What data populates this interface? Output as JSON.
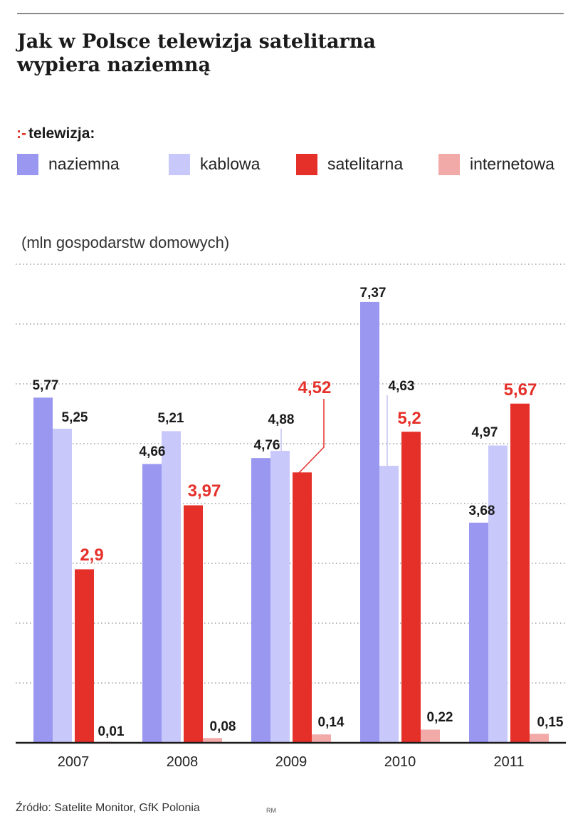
{
  "title_line1": "Jak w Polsce telewizja satelitarna",
  "title_line2": "wypiera naziemną",
  "legend": {
    "heading_mark": ":-",
    "heading": "telewizja:",
    "items": [
      {
        "label": "naziemna",
        "color": "#9a97f0"
      },
      {
        "label": "kablowa",
        "color": "#c9c8fb"
      },
      {
        "label": "satelitarna",
        "color": "#e5302a"
      },
      {
        "label": "internetowa",
        "color": "#f2aaa9"
      }
    ]
  },
  "unit_label": "(mln gospodarstw domowych)",
  "source": "Źródło: Satelite Monitor, GfK Polonia",
  "author_initials": "RM",
  "chart_data": {
    "type": "bar",
    "categories": [
      "2007",
      "2008",
      "2009",
      "2010",
      "2011"
    ],
    "series": [
      {
        "name": "naziemna",
        "color": "#9a97f0",
        "label_color": "#1a1a1a",
        "values": [
          5.77,
          4.66,
          4.76,
          7.37,
          3.68
        ],
        "labels": [
          "5,77",
          "4,66",
          "4,76",
          "7,37",
          "3,68"
        ]
      },
      {
        "name": "kablowa",
        "color": "#c9c8fb",
        "label_color": "#1a1a1a",
        "values": [
          5.25,
          5.21,
          4.88,
          4.63,
          4.97
        ],
        "labels": [
          "5,25",
          "5,21",
          "4,88",
          "4,63",
          "4,97"
        ]
      },
      {
        "name": "satelitarna",
        "color": "#e5302a",
        "label_color": "#e5302a",
        "values": [
          2.9,
          3.97,
          4.52,
          5.2,
          5.67
        ],
        "labels": [
          "2,9",
          "3,97",
          "4,52",
          "5,2",
          "5,67"
        ]
      },
      {
        "name": "internetowa",
        "color": "#f2aaa9",
        "label_color": "#1a1a1a",
        "values": [
          0.01,
          0.08,
          0.14,
          0.22,
          0.15
        ],
        "labels": [
          "0,01",
          "0,08",
          "0,14",
          "0,22",
          "0,15"
        ]
      }
    ],
    "ylabel": "(mln gospodarstw domowych)",
    "ylim": [
      0,
      8
    ],
    "grid": true,
    "grid_style": "dotted"
  }
}
